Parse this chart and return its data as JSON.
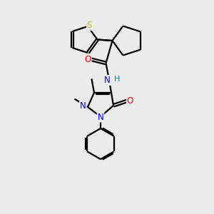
{
  "background_color": "#ebebeb",
  "line_color": "#000000",
  "bond_width": 1.6,
  "atom_colors": {
    "S": "#c8c800",
    "N": "#0000ff",
    "O": "#ff0000",
    "H": "#008b8b",
    "C": "#000000"
  },
  "figsize": [
    3.0,
    3.0
  ],
  "dpi": 100,
  "xlim": [
    0,
    10
  ],
  "ylim": [
    0,
    10
  ]
}
